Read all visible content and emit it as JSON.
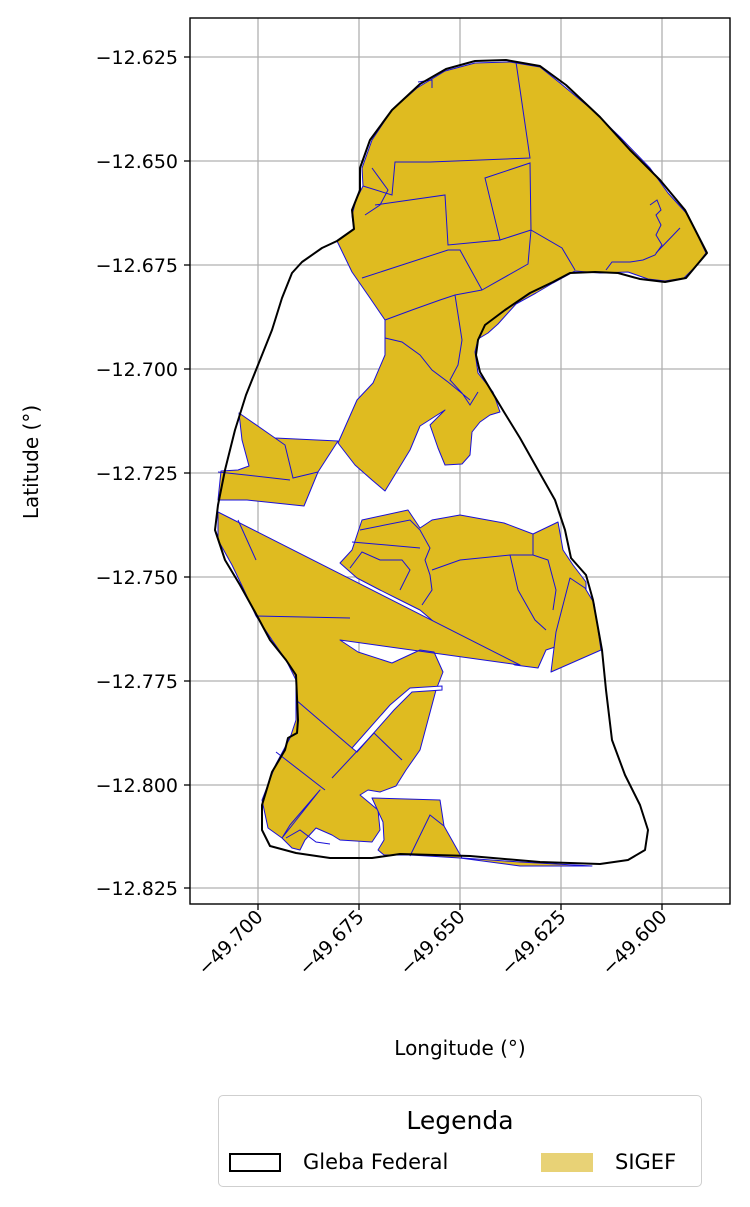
{
  "map": {
    "ylabel": "Latitude (°)",
    "xlabel": "Longitude (°)",
    "x_ticks": [
      "−49.700",
      "−49.675",
      "−49.650",
      "−49.625",
      "−49.600"
    ],
    "y_ticks": [
      "−12.625",
      "−12.650",
      "−12.675",
      "−12.700",
      "−12.725",
      "−12.750",
      "−12.775",
      "−12.800",
      "−12.825"
    ],
    "xlim": [
      -49.717,
      -49.585
    ],
    "ylim": [
      -12.829,
      -12.615
    ],
    "grid": true,
    "colors": {
      "gleba_outline": "#000000",
      "sigef_fill": "#dfbb20",
      "sigef_edge": "#1a10d8",
      "grid": "#b0b0b0"
    }
  },
  "legend": {
    "title": "Legenda",
    "placement": "bottom-center",
    "items": [
      {
        "label": "Gleba Federal",
        "symbol": "outline-box"
      },
      {
        "label": "SIGEF",
        "symbol": "filled-box"
      }
    ]
  }
}
